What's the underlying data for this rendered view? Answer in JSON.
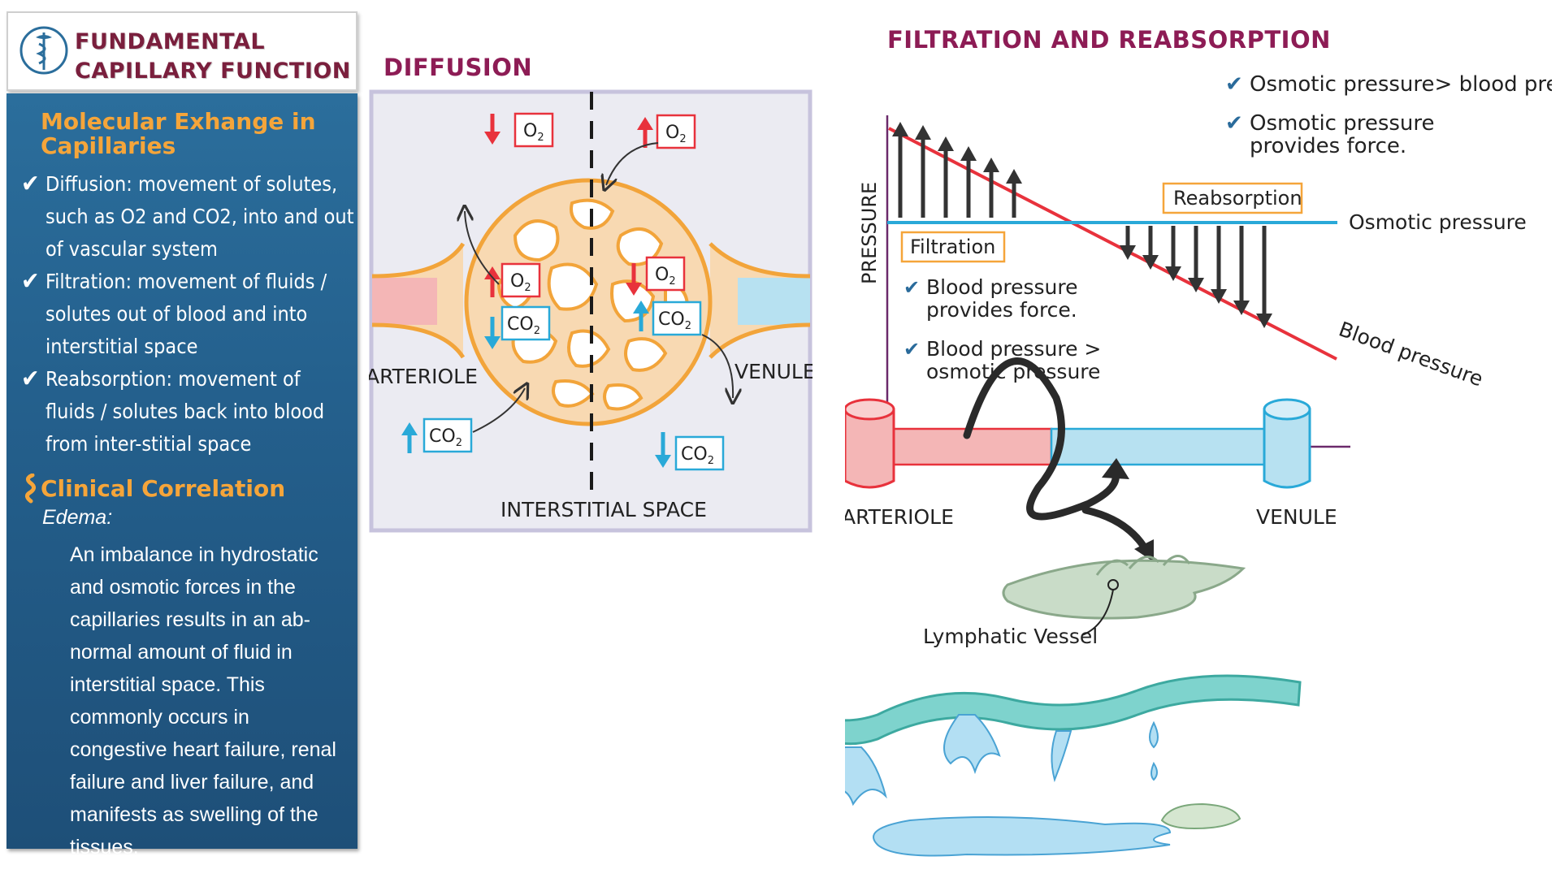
{
  "title": {
    "line1": "FUNDAMENTAL",
    "line2": "CAPILLARY FUNCTION"
  },
  "left_panel": {
    "heading": "Molecular Exhange in Capillaries",
    "items": [
      {
        "text": "Diffusion: movement of solutes, such as O2 and CO2, into and out of vascular system"
      },
      {
        "text": "Filtration: movement of fluids / solutes out of blood and into interstitial space"
      },
      {
        "text": "Reabsorption: movement of fluids / solutes back into blood from inter-stitial space"
      }
    ],
    "clinical_heading": "Clinical Correlation",
    "edema_label": "Edema:",
    "edema_text": "An imbalance in hydrostatic and osmotic forces in the capillaries results in an ab-normal amount of fluid in interstitial space. This commonly occurs in congestive heart failure, renal failure and liver failure, and manifests as swelling of the tissues."
  },
  "diffusion": {
    "heading": "DIFFUSION",
    "arteriole_label": "ARTERIOLE",
    "venule_label": "VENULE",
    "interstitial_label": "INTERSTITIAL SPACE",
    "o2": "O",
    "co2": "CO",
    "sub": "2"
  },
  "filtration": {
    "heading": "FILTRATION AND REABSORPTION",
    "check1": "Osmotic pressure> blood pressure",
    "check2_line1": "Osmotic pressure",
    "check2_line2": "provides force.",
    "pressure_axis": "PRESSURE",
    "reabsorption": "Reabsorption",
    "filtration": "Filtration",
    "osmotic_pressure": "Osmotic pressure",
    "blood_pressure": "Blood pressure",
    "bp_force_line1": "Blood pressure",
    "bp_force_line2": "provides force.",
    "bp_gt_line1": "Blood pressure >",
    "bp_gt_line2": "osmotic pressure",
    "arteriole": "ARTERIOLE",
    "venule": "VENULE",
    "lymphatic": "Lymphatic Vessel"
  },
  "colors": {
    "maroon": "#8d1c55",
    "orange": "#f5a53a",
    "red": "#e8323c",
    "blue": "#29a9d8",
    "panel": "#24608d"
  }
}
